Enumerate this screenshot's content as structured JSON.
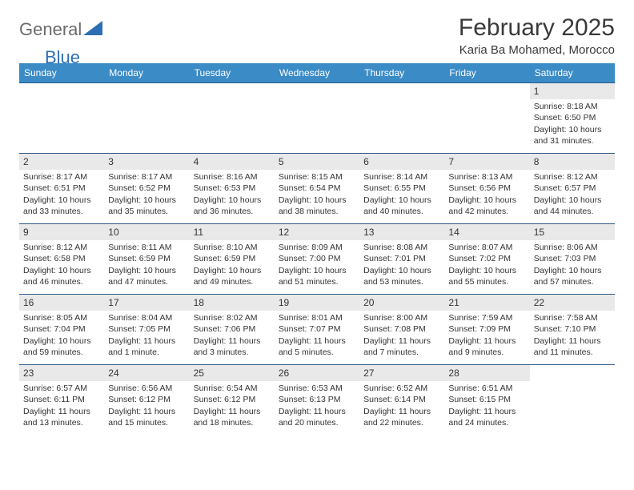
{
  "brand": {
    "text_general": "General",
    "text_blue": "Blue",
    "general_color": "#8a8a8a",
    "blue_color": "#2d6fb5",
    "mark_color": "#2d6fb5"
  },
  "header": {
    "month_title": "February 2025",
    "location": "Karia Ba Mohamed, Morocco"
  },
  "styling": {
    "header_bg": "#3b8bc6",
    "header_text": "#ffffff",
    "row_border_color": "#2d5a8a",
    "daynum_bg": "#e9e9e9",
    "body_text_color": "#333333",
    "title_color": "#3a3a3a",
    "font_family": "Arial",
    "weekday_fontsize": 12,
    "daynum_fontsize": 12,
    "detail_fontsize": 10.5,
    "title_fontsize": 30,
    "location_fontsize": 15
  },
  "weekdays": [
    "Sunday",
    "Monday",
    "Tuesday",
    "Wednesday",
    "Thursday",
    "Friday",
    "Saturday"
  ],
  "weeks": [
    [
      null,
      null,
      null,
      null,
      null,
      null,
      {
        "n": "1",
        "sr": "8:18 AM",
        "ss": "6:50 PM",
        "dl": "10 hours and 31 minutes."
      }
    ],
    [
      {
        "n": "2",
        "sr": "8:17 AM",
        "ss": "6:51 PM",
        "dl": "10 hours and 33 minutes."
      },
      {
        "n": "3",
        "sr": "8:17 AM",
        "ss": "6:52 PM",
        "dl": "10 hours and 35 minutes."
      },
      {
        "n": "4",
        "sr": "8:16 AM",
        "ss": "6:53 PM",
        "dl": "10 hours and 36 minutes."
      },
      {
        "n": "5",
        "sr": "8:15 AM",
        "ss": "6:54 PM",
        "dl": "10 hours and 38 minutes."
      },
      {
        "n": "6",
        "sr": "8:14 AM",
        "ss": "6:55 PM",
        "dl": "10 hours and 40 minutes."
      },
      {
        "n": "7",
        "sr": "8:13 AM",
        "ss": "6:56 PM",
        "dl": "10 hours and 42 minutes."
      },
      {
        "n": "8",
        "sr": "8:12 AM",
        "ss": "6:57 PM",
        "dl": "10 hours and 44 minutes."
      }
    ],
    [
      {
        "n": "9",
        "sr": "8:12 AM",
        "ss": "6:58 PM",
        "dl": "10 hours and 46 minutes."
      },
      {
        "n": "10",
        "sr": "8:11 AM",
        "ss": "6:59 PM",
        "dl": "10 hours and 47 minutes."
      },
      {
        "n": "11",
        "sr": "8:10 AM",
        "ss": "6:59 PM",
        "dl": "10 hours and 49 minutes."
      },
      {
        "n": "12",
        "sr": "8:09 AM",
        "ss": "7:00 PM",
        "dl": "10 hours and 51 minutes."
      },
      {
        "n": "13",
        "sr": "8:08 AM",
        "ss": "7:01 PM",
        "dl": "10 hours and 53 minutes."
      },
      {
        "n": "14",
        "sr": "8:07 AM",
        "ss": "7:02 PM",
        "dl": "10 hours and 55 minutes."
      },
      {
        "n": "15",
        "sr": "8:06 AM",
        "ss": "7:03 PM",
        "dl": "10 hours and 57 minutes."
      }
    ],
    [
      {
        "n": "16",
        "sr": "8:05 AM",
        "ss": "7:04 PM",
        "dl": "10 hours and 59 minutes."
      },
      {
        "n": "17",
        "sr": "8:04 AM",
        "ss": "7:05 PM",
        "dl": "11 hours and 1 minute."
      },
      {
        "n": "18",
        "sr": "8:02 AM",
        "ss": "7:06 PM",
        "dl": "11 hours and 3 minutes."
      },
      {
        "n": "19",
        "sr": "8:01 AM",
        "ss": "7:07 PM",
        "dl": "11 hours and 5 minutes."
      },
      {
        "n": "20",
        "sr": "8:00 AM",
        "ss": "7:08 PM",
        "dl": "11 hours and 7 minutes."
      },
      {
        "n": "21",
        "sr": "7:59 AM",
        "ss": "7:09 PM",
        "dl": "11 hours and 9 minutes."
      },
      {
        "n": "22",
        "sr": "7:58 AM",
        "ss": "7:10 PM",
        "dl": "11 hours and 11 minutes."
      }
    ],
    [
      {
        "n": "23",
        "sr": "6:57 AM",
        "ss": "6:11 PM",
        "dl": "11 hours and 13 minutes."
      },
      {
        "n": "24",
        "sr": "6:56 AM",
        "ss": "6:12 PM",
        "dl": "11 hours and 15 minutes."
      },
      {
        "n": "25",
        "sr": "6:54 AM",
        "ss": "6:12 PM",
        "dl": "11 hours and 18 minutes."
      },
      {
        "n": "26",
        "sr": "6:53 AM",
        "ss": "6:13 PM",
        "dl": "11 hours and 20 minutes."
      },
      {
        "n": "27",
        "sr": "6:52 AM",
        "ss": "6:14 PM",
        "dl": "11 hours and 22 minutes."
      },
      {
        "n": "28",
        "sr": "6:51 AM",
        "ss": "6:15 PM",
        "dl": "11 hours and 24 minutes."
      },
      null
    ]
  ],
  "labels": {
    "sunrise": "Sunrise:",
    "sunset": "Sunset:",
    "daylight": "Daylight:"
  }
}
